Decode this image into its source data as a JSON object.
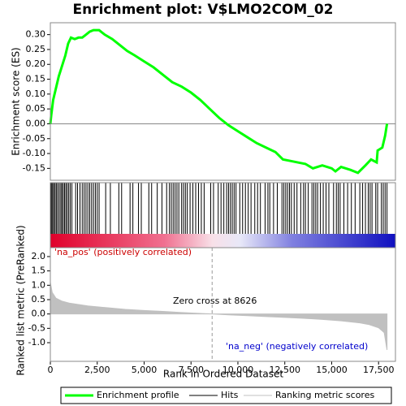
{
  "chart_data": [
    {
      "type": "line",
      "title": "Enrichment plot: V$LMO2COM_02",
      "ylabel": "Enrichment score (ES)",
      "x": [
        0,
        50,
        150,
        300,
        450,
        600,
        800,
        950,
        1100,
        1300,
        1500,
        1700,
        1900,
        2100,
        2300,
        2600,
        2900,
        3300,
        3700,
        4100,
        4500,
        5000,
        5500,
        6000,
        6500,
        7000,
        7500,
        8000,
        8500,
        9000,
        9500,
        10000,
        10500,
        11000,
        11500,
        12000,
        12400,
        12800,
        13200,
        13600,
        14000,
        14500,
        15000,
        15200,
        15500,
        16000,
        16400,
        16800,
        17100,
        17400,
        17450,
        17700,
        17850,
        17950
      ],
      "series": [
        {
          "name": "Enrichment profile",
          "color": "#00ff00",
          "values": [
            0.0,
            0.03,
            0.08,
            0.12,
            0.16,
            0.19,
            0.23,
            0.27,
            0.29,
            0.285,
            0.29,
            0.29,
            0.3,
            0.31,
            0.315,
            0.315,
            0.3,
            0.285,
            0.265,
            0.245,
            0.23,
            0.21,
            0.19,
            0.165,
            0.14,
            0.125,
            0.105,
            0.08,
            0.05,
            0.02,
            -0.005,
            -0.025,
            -0.045,
            -0.065,
            -0.08,
            -0.095,
            -0.12,
            -0.125,
            -0.13,
            -0.135,
            -0.15,
            -0.14,
            -0.15,
            -0.16,
            -0.145,
            -0.155,
            -0.165,
            -0.14,
            -0.12,
            -0.13,
            -0.09,
            -0.08,
            -0.04,
            0.0
          ]
        }
      ],
      "xlim": [
        0,
        18400
      ],
      "ylim": [
        -0.19,
        0.34
      ],
      "yticks": [
        {
          "value": 0.3,
          "label": "0.30"
        },
        {
          "value": 0.25,
          "label": "0.25"
        },
        {
          "value": 0.2,
          "label": "0.20"
        },
        {
          "value": 0.15,
          "label": "0.15"
        },
        {
          "value": 0.1,
          "label": "0.10"
        },
        {
          "value": 0.05,
          "label": "0.05"
        },
        {
          "value": 0,
          "label": "0.00"
        },
        {
          "value": -0.05,
          "label": "-0.05"
        },
        {
          "value": -0.1,
          "label": "-0.10"
        },
        {
          "value": -0.15,
          "label": "-0.15"
        }
      ]
    },
    {
      "type": "hits",
      "series": [
        {
          "name": "Hits",
          "color": "#000000",
          "x": [
            30,
            80,
            130,
            200,
            260,
            330,
            400,
            480,
            560,
            620,
            690,
            760,
            830,
            900,
            980,
            1060,
            1150,
            1350,
            1450,
            1580,
            1700,
            1800,
            1900,
            2000,
            2100,
            2200,
            2300,
            2400,
            2500,
            2600,
            2950,
            3200,
            3650,
            3800,
            4250,
            4400,
            4700,
            4850,
            5250,
            5400,
            5700,
            5950,
            6200,
            6350,
            6450,
            6550,
            6650,
            6750,
            6850,
            7000,
            7100,
            7200,
            7300,
            7450,
            7600,
            7750,
            7900,
            8050,
            8200,
            8550,
            8700,
            8950,
            9100,
            9250,
            9400,
            9500,
            9600,
            9700,
            9800,
            9900,
            10100,
            10250,
            10400,
            10550,
            10700,
            10900,
            11050,
            11200,
            11450,
            11600,
            11700,
            11900,
            12100,
            12350,
            12450,
            12550,
            12650,
            12750,
            12850,
            13000,
            13150,
            13350,
            13500,
            13600,
            13750,
            13950,
            14050,
            14150,
            14250,
            14400,
            14550,
            14700,
            14850,
            15100,
            15250,
            15350,
            15450,
            15650,
            15850,
            16050,
            16250,
            16500,
            16650,
            16800,
            16950,
            17050,
            17150,
            17350,
            17450,
            17650,
            17750,
            17850,
            17950
          ]
        }
      ],
      "xlim": [
        0,
        18400
      ]
    },
    {
      "type": "area",
      "xlabel": "Rank in Ordered Dataset",
      "ylabel": "Ranked list metric (PreRanked)",
      "x": [
        0,
        100,
        300,
        600,
        1000,
        2000,
        3000,
        4000,
        5000,
        6000,
        7000,
        8000,
        8626,
        9500,
        10500,
        11500,
        12500,
        13500,
        14500,
        15500,
        16500,
        17000,
        17500,
        17800,
        17950
      ],
      "series": [
        {
          "name": "Ranking metric scores",
          "color": "#c0c0c0",
          "values": [
            1.1,
            0.75,
            0.55,
            0.45,
            0.38,
            0.28,
            0.22,
            0.16,
            0.12,
            0.09,
            0.05,
            0.02,
            0,
            -0.03,
            -0.06,
            -0.09,
            -0.12,
            -0.15,
            -0.19,
            -0.24,
            -0.31,
            -0.37,
            -0.48,
            -0.65,
            -1.25
          ]
        }
      ],
      "xlim": [
        0,
        18400
      ],
      "ylim": [
        -1.65,
        2.31
      ],
      "xticks": [
        0,
        {
          "value": 2500,
          "label": "2,500"
        },
        {
          "value": 5000,
          "label": "5,000"
        },
        {
          "value": 7500,
          "label": "7,500"
        },
        {
          "value": 10000,
          "label": "10,000"
        },
        {
          "value": 12500,
          "label": "12,500"
        },
        {
          "value": 15000,
          "label": "15,000"
        },
        {
          "value": 17500,
          "label": "17,500"
        }
      ],
      "yticks": [
        {
          "value": 2,
          "label": "2.0"
        },
        {
          "value": 1.5,
          "label": "1.5"
        },
        {
          "value": 1,
          "label": "1.0"
        },
        {
          "value": 0.5,
          "label": "0.5"
        },
        {
          "value": 0,
          "label": "0.0"
        },
        {
          "value": -0.5,
          "label": "-0.5"
        },
        {
          "value": -1,
          "label": "-1.0"
        }
      ],
      "zero_cross": 8626,
      "zero_cross_label": "Zero cross at 8626",
      "pos_label": "'na_pos' (positively correlated)",
      "neg_label": "'na_neg' (negatively correlated)"
    }
  ]
}
